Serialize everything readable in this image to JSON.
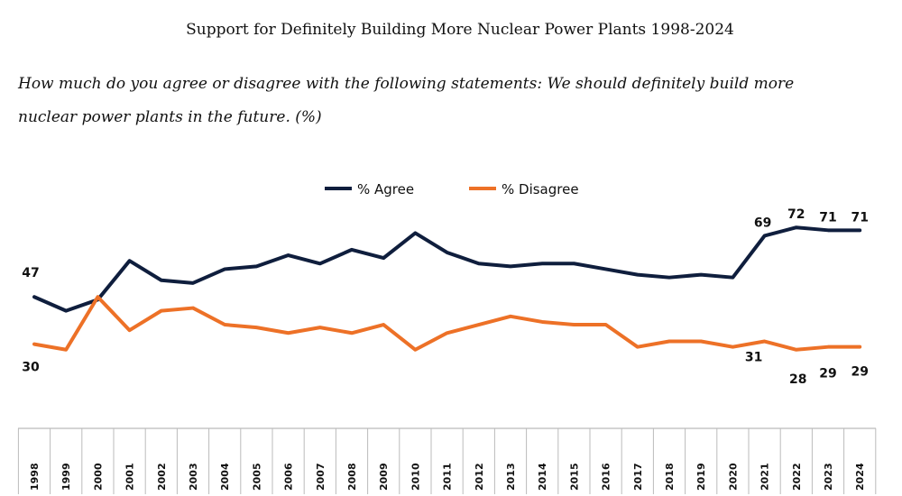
{
  "chart_data": {
    "type": "line",
    "title": "Support for Definitely Building More Nuclear Power Plants 1998-2024",
    "subtitle_line1": "How much do you agree or disagree with the following statements: We should definitely build more",
    "subtitle_line2": "nuclear power plants in the future. (%)",
    "xlabel": "",
    "ylabel": "",
    "ylim": [
      0,
      80
    ],
    "grid": false,
    "legend_placement": "top-center",
    "categories": [
      "1998",
      "1999",
      "2000",
      "2001",
      "2002",
      "2003",
      "2004",
      "2005",
      "2006",
      "2007",
      "2008",
      "2009",
      "2010",
      "2011",
      "2012",
      "2013",
      "2014",
      "2015",
      "2016",
      "2017",
      "2018",
      "2019",
      "2020",
      "2021",
      "2022",
      "2023",
      "2024"
    ],
    "series": [
      {
        "name": "% Agree",
        "color": "#0f1e3d",
        "values": [
          47,
          42,
          46,
          60,
          53,
          52,
          57,
          58,
          62,
          59,
          64,
          61,
          70,
          63,
          59,
          58,
          59,
          59,
          57,
          55,
          54,
          55,
          54,
          69,
          72,
          71,
          71
        ]
      },
      {
        "name": "% Disagree",
        "color": "#ed7127",
        "values": [
          30,
          28,
          47,
          35,
          42,
          43,
          37,
          36,
          34,
          36,
          34,
          37,
          28,
          34,
          37,
          40,
          38,
          37,
          37,
          29,
          31,
          31,
          29,
          31,
          28,
          29,
          29
        ]
      }
    ],
    "data_labels": [
      {
        "series": 0,
        "index": 0,
        "text": "47"
      },
      {
        "series": 0,
        "index": 23,
        "text": "69"
      },
      {
        "series": 0,
        "index": 24,
        "text": "72"
      },
      {
        "series": 0,
        "index": 25,
        "text": "71"
      },
      {
        "series": 0,
        "index": 26,
        "text": "71"
      },
      {
        "series": 1,
        "index": 0,
        "text": "30"
      },
      {
        "series": 1,
        "index": 23,
        "text": "31"
      },
      {
        "series": 1,
        "index": 24,
        "text": "28"
      },
      {
        "series": 1,
        "index": 25,
        "text": "29"
      },
      {
        "series": 1,
        "index": 26,
        "text": "29"
      }
    ]
  }
}
